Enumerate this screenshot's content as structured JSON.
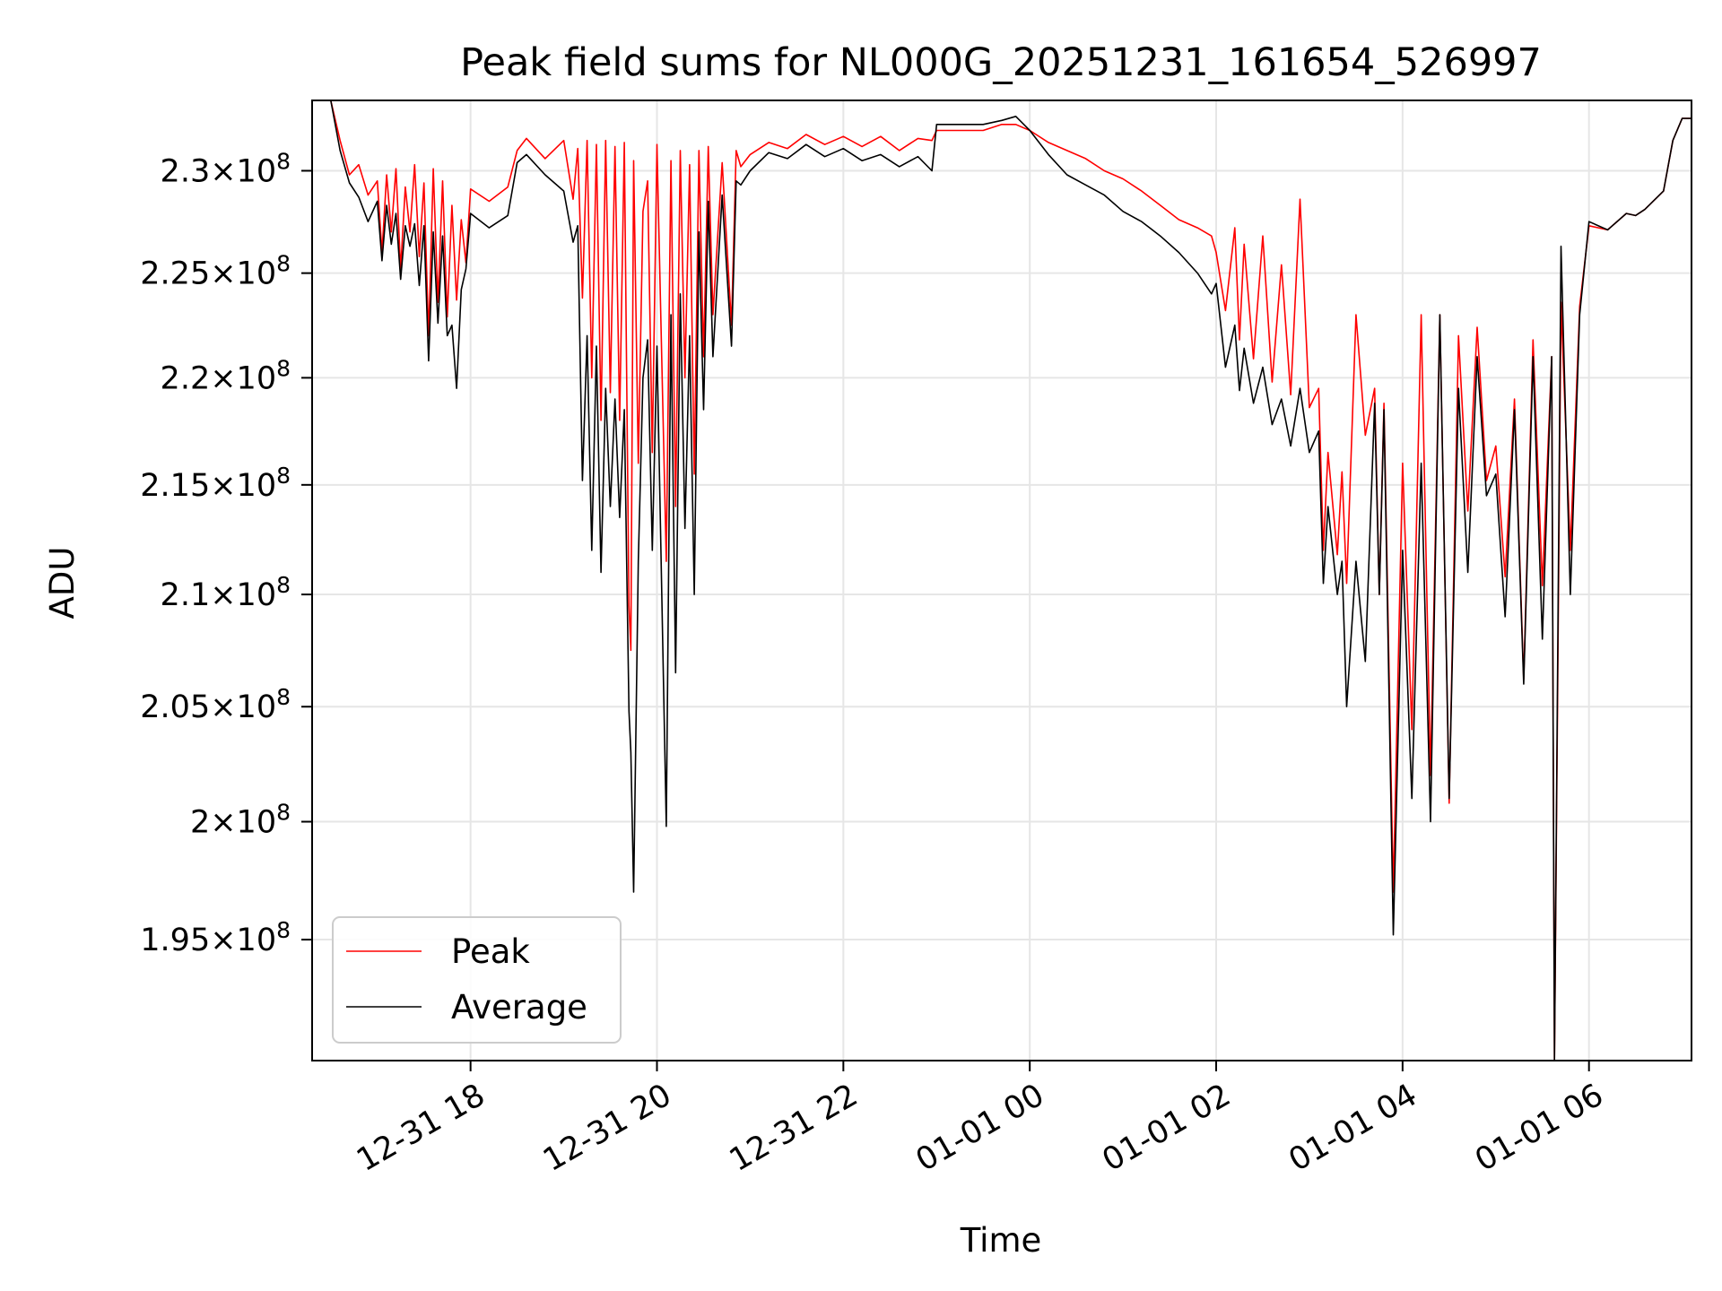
{
  "chart_data": {
    "type": "line",
    "title": "Peak field sums for NL000G_20251231_161654_526997",
    "xlabel": "Time",
    "ylabel": "ADU",
    "x_unit": "hours since 2025-12-31 00:00",
    "xlim": [
      16.3,
      31.1
    ],
    "ylim": [
      190000000.0,
      233500000.0
    ],
    "y_scale": "log",
    "grid": true,
    "legend_position": "lower-left",
    "x_ticks": [
      {
        "value": 18,
        "label": "12-31 18"
      },
      {
        "value": 20,
        "label": "12-31 20"
      },
      {
        "value": 22,
        "label": "12-31 22"
      },
      {
        "value": 24,
        "label": "01-01 00"
      },
      {
        "value": 26,
        "label": "01-01 02"
      },
      {
        "value": 28,
        "label": "01-01 04"
      },
      {
        "value": 30,
        "label": "01-01 06"
      }
    ],
    "y_ticks": [
      {
        "value": 195000000.0,
        "mantissa": "1.95",
        "exponent": "8"
      },
      {
        "value": 200000000.0,
        "mantissa": "2",
        "exponent": "8"
      },
      {
        "value": 205000000.0,
        "mantissa": "2.05",
        "exponent": "8"
      },
      {
        "value": 210000000.0,
        "mantissa": "2.1",
        "exponent": "8"
      },
      {
        "value": 215000000.0,
        "mantissa": "2.15",
        "exponent": "8"
      },
      {
        "value": 220000000.0,
        "mantissa": "2.2",
        "exponent": "8"
      },
      {
        "value": 225000000.0,
        "mantissa": "2.25",
        "exponent": "8"
      },
      {
        "value": 230000000.0,
        "mantissa": "2.3",
        "exponent": "8"
      }
    ],
    "series": [
      {
        "name": "Peak",
        "color": "#ff0000",
        "x": [
          16.3,
          16.5,
          16.6,
          16.7,
          16.8,
          16.9,
          17.0,
          17.05,
          17.1,
          17.15,
          17.2,
          17.25,
          17.3,
          17.35,
          17.4,
          17.45,
          17.5,
          17.55,
          17.6,
          17.65,
          17.7,
          17.75,
          17.8,
          17.85,
          17.9,
          17.95,
          18.0,
          18.2,
          18.4,
          18.5,
          18.6,
          18.8,
          19.0,
          19.1,
          19.15,
          19.2,
          19.25,
          19.3,
          19.35,
          19.4,
          19.45,
          19.5,
          19.55,
          19.6,
          19.65,
          19.7,
          19.72,
          19.75,
          19.8,
          19.85,
          19.9,
          19.95,
          20.0,
          20.1,
          20.15,
          20.2,
          20.25,
          20.3,
          20.35,
          20.4,
          20.45,
          20.5,
          20.55,
          20.6,
          20.7,
          20.8,
          20.85,
          20.9,
          21.0,
          21.2,
          21.4,
          21.6,
          21.8,
          22.0,
          22.2,
          22.4,
          22.6,
          22.8,
          22.95,
          23.0,
          23.5,
          23.7,
          23.85,
          24.0,
          24.2,
          24.4,
          24.6,
          24.8,
          25.0,
          25.2,
          25.4,
          25.6,
          25.8,
          25.95,
          26.0,
          26.1,
          26.2,
          26.25,
          26.3,
          26.4,
          26.5,
          26.6,
          26.7,
          26.8,
          26.9,
          27.0,
          27.1,
          27.15,
          27.2,
          27.3,
          27.35,
          27.4,
          27.5,
          27.6,
          27.7,
          27.75,
          27.8,
          27.9,
          28.0,
          28.1,
          28.2,
          28.3,
          28.4,
          28.5,
          28.6,
          28.7,
          28.8,
          28.9,
          29.0,
          29.1,
          29.2,
          29.3,
          29.4,
          29.5,
          29.6,
          29.63,
          29.7,
          29.8,
          29.9,
          30.0,
          30.2,
          30.4,
          30.5,
          30.6,
          30.8,
          30.9,
          31.0,
          31.1
        ],
        "values": [
          233500000.0,
          233500000.0,
          231500000.0,
          229800000.0,
          230300000.0,
          228800000.0,
          229500000.0,
          226000000.0,
          229800000.0,
          227000000.0,
          230100000.0,
          225200000.0,
          229200000.0,
          227000000.0,
          230300000.0,
          225800000.0,
          229400000.0,
          222000000.0,
          230100000.0,
          223600000.0,
          229500000.0,
          222900000.0,
          228300000.0,
          223700000.0,
          227600000.0,
          225500000.0,
          229100000.0,
          228500000.0,
          229200000.0,
          231000000.0,
          231600000.0,
          230600000.0,
          231500000.0,
          228600000.0,
          231100000.0,
          223800000.0,
          231500000.0,
          220000000.0,
          231300000.0,
          218000000.0,
          231500000.0,
          219300000.0,
          231200000.0,
          218000000.0,
          231400000.0,
          209500000.0,
          207500000.0,
          230500000.0,
          216000000.0,
          228000000.0,
          229500000.0,
          216500000.0,
          231300000.0,
          211500000.0,
          230500000.0,
          214000000.0,
          231000000.0,
          220000000.0,
          230300000.0,
          215500000.0,
          231000000.0,
          221000000.0,
          231200000.0,
          223000000.0,
          230400000.0,
          222500000.0,
          231000000.0,
          230200000.0,
          230800000.0,
          231400000.0,
          231100000.0,
          231800000.0,
          231300000.0,
          231700000.0,
          231200000.0,
          231700000.0,
          231000000.0,
          231600000.0,
          231500000.0,
          232000000.0,
          232000000.0,
          232300000.0,
          232300000.0,
          232000000.0,
          231400000.0,
          231000000.0,
          230600000.0,
          230000000.0,
          229600000.0,
          229000000.0,
          228300000.0,
          227600000.0,
          227200000.0,
          226800000.0,
          226000000.0,
          223200000.0,
          227200000.0,
          221800000.0,
          226400000.0,
          220900000.0,
          226800000.0,
          219800000.0,
          225400000.0,
          219200000.0,
          228600000.0,
          218600000.0,
          219500000.0,
          212000000.0,
          216500000.0,
          211800000.0,
          215600000.0,
          210500000.0,
          223000000.0,
          217300000.0,
          219500000.0,
          210000000.0,
          218800000.0,
          197000000.0,
          216000000.0,
          204000000.0,
          223000000.0,
          202000000.0,
          223000000.0,
          200800000.0,
          222000000.0,
          213800000.0,
          222400000.0,
          215200000.0,
          216800000.0,
          210800000.0,
          219000000.0,
          206200000.0,
          221800000.0,
          210400000.0,
          221000000.0,
          190000000.0,
          223600000.0,
          212000000.0,
          223400000.0,
          227300000.0,
          227100000.0,
          227900000.0,
          227800000.0,
          228100000.0,
          229000000.0,
          231500000.0,
          232600000.0,
          232600000.0
        ]
      },
      {
        "name": "Average",
        "color": "#000000",
        "x": [
          16.3,
          16.5,
          16.6,
          16.7,
          16.8,
          16.9,
          17.0,
          17.05,
          17.1,
          17.15,
          17.2,
          17.25,
          17.3,
          17.35,
          17.4,
          17.45,
          17.5,
          17.55,
          17.6,
          17.65,
          17.7,
          17.75,
          17.8,
          17.85,
          17.9,
          17.95,
          18.0,
          18.2,
          18.4,
          18.5,
          18.6,
          18.8,
          19.0,
          19.1,
          19.15,
          19.2,
          19.25,
          19.3,
          19.35,
          19.4,
          19.45,
          19.5,
          19.55,
          19.6,
          19.65,
          19.7,
          19.72,
          19.75,
          19.8,
          19.85,
          19.9,
          19.95,
          20.0,
          20.1,
          20.15,
          20.2,
          20.25,
          20.3,
          20.35,
          20.4,
          20.45,
          20.5,
          20.55,
          20.6,
          20.7,
          20.8,
          20.85,
          20.9,
          21.0,
          21.2,
          21.4,
          21.6,
          21.8,
          22.0,
          22.2,
          22.4,
          22.6,
          22.8,
          22.95,
          23.0,
          23.5,
          23.7,
          23.85,
          24.0,
          24.2,
          24.4,
          24.6,
          24.8,
          25.0,
          25.2,
          25.4,
          25.6,
          25.8,
          25.95,
          26.0,
          26.1,
          26.2,
          26.25,
          26.3,
          26.4,
          26.5,
          26.6,
          26.7,
          26.8,
          26.9,
          27.0,
          27.1,
          27.15,
          27.2,
          27.3,
          27.35,
          27.4,
          27.5,
          27.6,
          27.7,
          27.75,
          27.8,
          27.9,
          28.0,
          28.1,
          28.2,
          28.3,
          28.4,
          28.5,
          28.6,
          28.7,
          28.8,
          28.9,
          29.0,
          29.1,
          29.2,
          29.3,
          29.4,
          29.5,
          29.6,
          29.63,
          29.7,
          29.8,
          29.9,
          30.0,
          30.2,
          30.4,
          30.5,
          30.6,
          30.8,
          30.9,
          31.0,
          31.1
        ],
        "values": [
          233500000.0,
          233500000.0,
          231000000.0,
          229400000.0,
          228700000.0,
          227500000.0,
          228500000.0,
          225600000.0,
          228300000.0,
          226400000.0,
          227900000.0,
          224700000.0,
          227300000.0,
          226300000.0,
          227400000.0,
          224400000.0,
          227300000.0,
          220800000.0,
          227000000.0,
          222600000.0,
          226800000.0,
          222000000.0,
          222500000.0,
          219500000.0,
          224200000.0,
          225200000.0,
          227900000.0,
          227200000.0,
          227800000.0,
          230400000.0,
          230800000.0,
          229800000.0,
          229000000.0,
          226500000.0,
          227300000.0,
          215200000.0,
          222000000.0,
          212000000.0,
          221500000.0,
          211000000.0,
          219500000.0,
          214000000.0,
          219000000.0,
          213500000.0,
          218500000.0,
          204800000.0,
          203000000.0,
          197000000.0,
          211500000.0,
          220000000.0,
          221800000.0,
          212000000.0,
          221500000.0,
          199800000.0,
          223000000.0,
          206500000.0,
          224000000.0,
          213000000.0,
          222000000.0,
          210000000.0,
          227000000.0,
          218500000.0,
          228500000.0,
          221000000.0,
          228800000.0,
          221500000.0,
          229500000.0,
          229300000.0,
          230000000.0,
          230900000.0,
          230600000.0,
          231300000.0,
          230700000.0,
          231100000.0,
          230500000.0,
          230800000.0,
          230200000.0,
          230700000.0,
          230000000.0,
          232300000.0,
          232300000.0,
          232500000.0,
          232700000.0,
          232000000.0,
          230800000.0,
          229800000.0,
          229300000.0,
          228800000.0,
          228000000.0,
          227500000.0,
          226800000.0,
          226000000.0,
          225000000.0,
          224000000.0,
          224500000.0,
          220500000.0,
          222500000.0,
          219400000.0,
          221400000.0,
          218800000.0,
          220500000.0,
          217800000.0,
          219000000.0,
          216800000.0,
          219500000.0,
          216500000.0,
          217500000.0,
          210500000.0,
          214000000.0,
          210000000.0,
          211500000.0,
          205000000.0,
          211500000.0,
          207000000.0,
          218800000.0,
          210000000.0,
          218500000.0,
          195200000.0,
          212000000.0,
          201000000.0,
          216000000.0,
          200000000.0,
          223000000.0,
          201000000.0,
          219500000.0,
          211000000.0,
          221000000.0,
          214500000.0,
          215500000.0,
          209000000.0,
          218500000.0,
          206000000.0,
          221000000.0,
          208000000.0,
          221000000.0,
          190000000.0,
          226300000.0,
          210000000.0,
          223000000.0,
          227500000.0,
          227100000.0,
          227900000.0,
          227800000.0,
          228100000.0,
          229000000.0,
          231500000.0,
          232600000.0,
          232600000.0
        ]
      }
    ]
  }
}
